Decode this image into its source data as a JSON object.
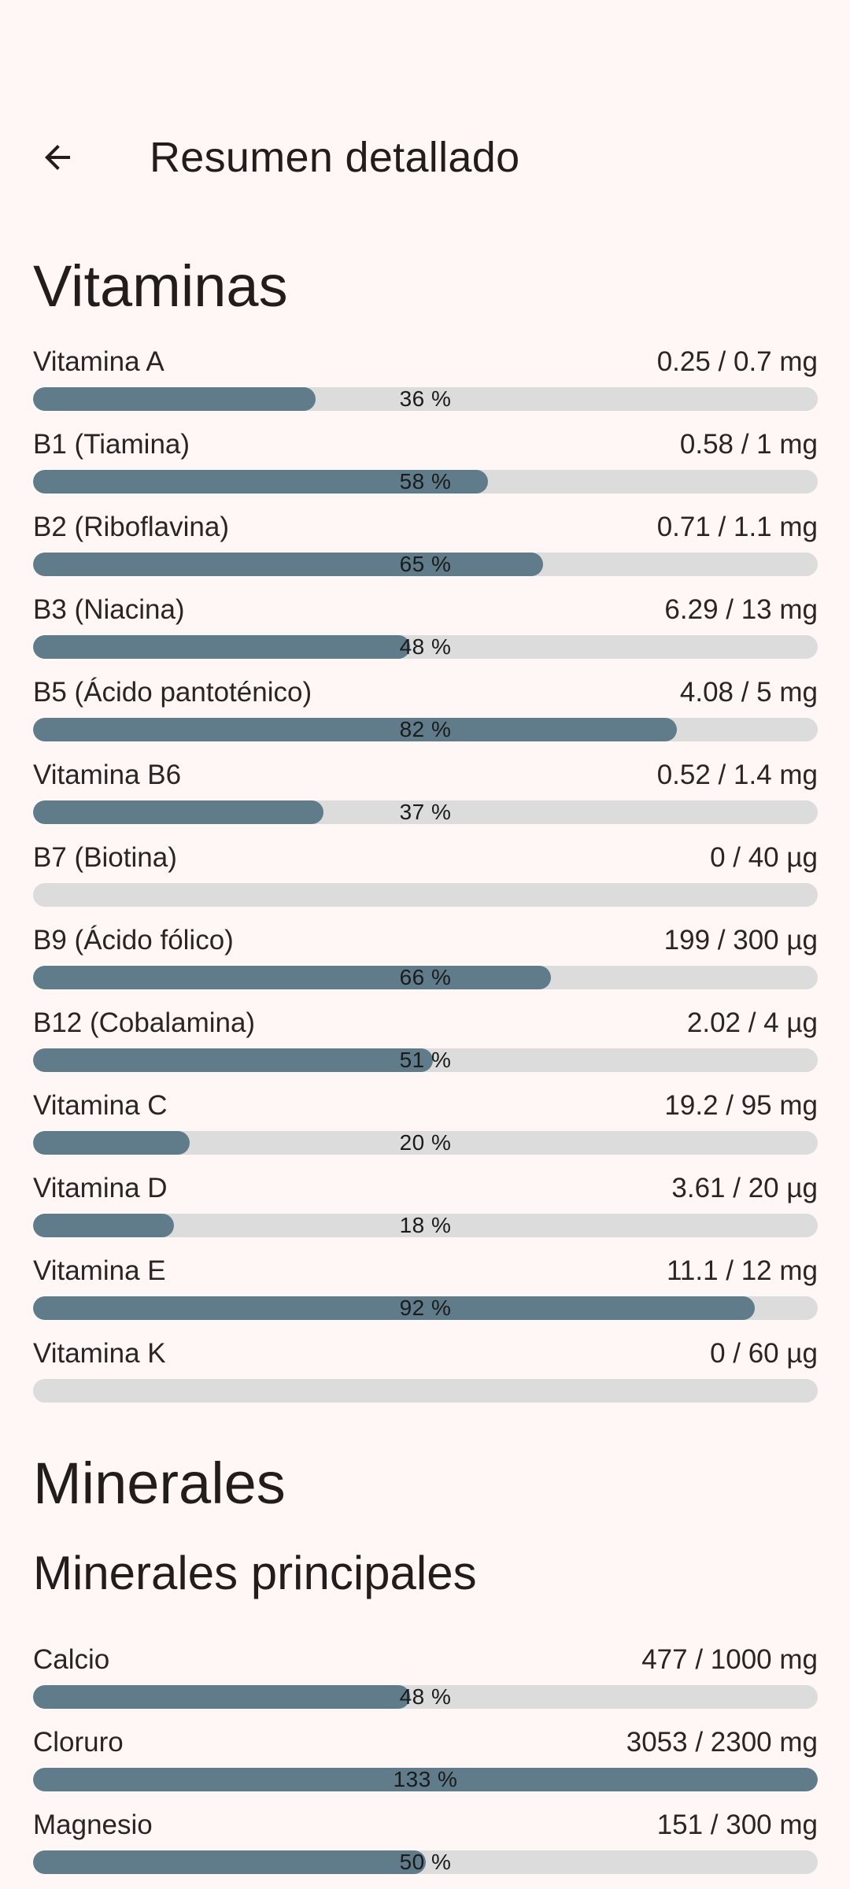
{
  "header": {
    "title": "Resumen detallado",
    "back_icon": "arrow-left-icon"
  },
  "colors": {
    "background": "#fff7f5",
    "bar_fill": "#607c8b",
    "bar_track": "#dcdcdc"
  },
  "vitaminas": {
    "title": "Vitaminas",
    "items": [
      {
        "name": "Vitamina A",
        "amount": "0.25 / 0.7 mg",
        "percent_label": "36 %",
        "percent": 36
      },
      {
        "name": "B1 (Tiamina)",
        "amount": "0.58 / 1 mg",
        "percent_label": "58 %",
        "percent": 58
      },
      {
        "name": "B2 (Riboflavina)",
        "amount": "0.71 / 1.1 mg",
        "percent_label": "65 %",
        "percent": 65
      },
      {
        "name": "B3 (Niacina)",
        "amount": "6.29 / 13 mg",
        "percent_label": "48 %",
        "percent": 48
      },
      {
        "name": "B5 (Ácido pantoténico)",
        "amount": "4.08 / 5 mg",
        "percent_label": "82 %",
        "percent": 82
      },
      {
        "name": "Vitamina B6",
        "amount": "0.52 / 1.4 mg",
        "percent_label": "37 %",
        "percent": 37
      },
      {
        "name": "B7 (Biotina)",
        "amount": "0 / 40 µg",
        "percent_label": "",
        "percent": 0
      },
      {
        "name": "B9 (Ácido fólico)",
        "amount": "199 / 300 µg",
        "percent_label": "66 %",
        "percent": 66
      },
      {
        "name": "B12 (Cobalamina)",
        "amount": "2.02 / 4 µg",
        "percent_label": "51 %",
        "percent": 51
      },
      {
        "name": "Vitamina C",
        "amount": "19.2 / 95 mg",
        "percent_label": "20 %",
        "percent": 20
      },
      {
        "name": "Vitamina D",
        "amount": "3.61 / 20 µg",
        "percent_label": "18 %",
        "percent": 18
      },
      {
        "name": "Vitamina E",
        "amount": "11.1 / 12 mg",
        "percent_label": "92 %",
        "percent": 92
      },
      {
        "name": "Vitamina K",
        "amount": "0 / 60 µg",
        "percent_label": "",
        "percent": 0
      }
    ]
  },
  "minerales": {
    "title": "Minerales",
    "subtitle": "Minerales principales",
    "items": [
      {
        "name": "Calcio",
        "amount": "477 / 1000 mg",
        "percent_label": "48 %",
        "percent": 48
      },
      {
        "name": "Cloruro",
        "amount": "3053 / 2300 mg",
        "percent_label": "133 %",
        "percent": 133
      },
      {
        "name": "Magnesio",
        "amount": "151 / 300 mg",
        "percent_label": "50 %",
        "percent": 50
      }
    ]
  }
}
